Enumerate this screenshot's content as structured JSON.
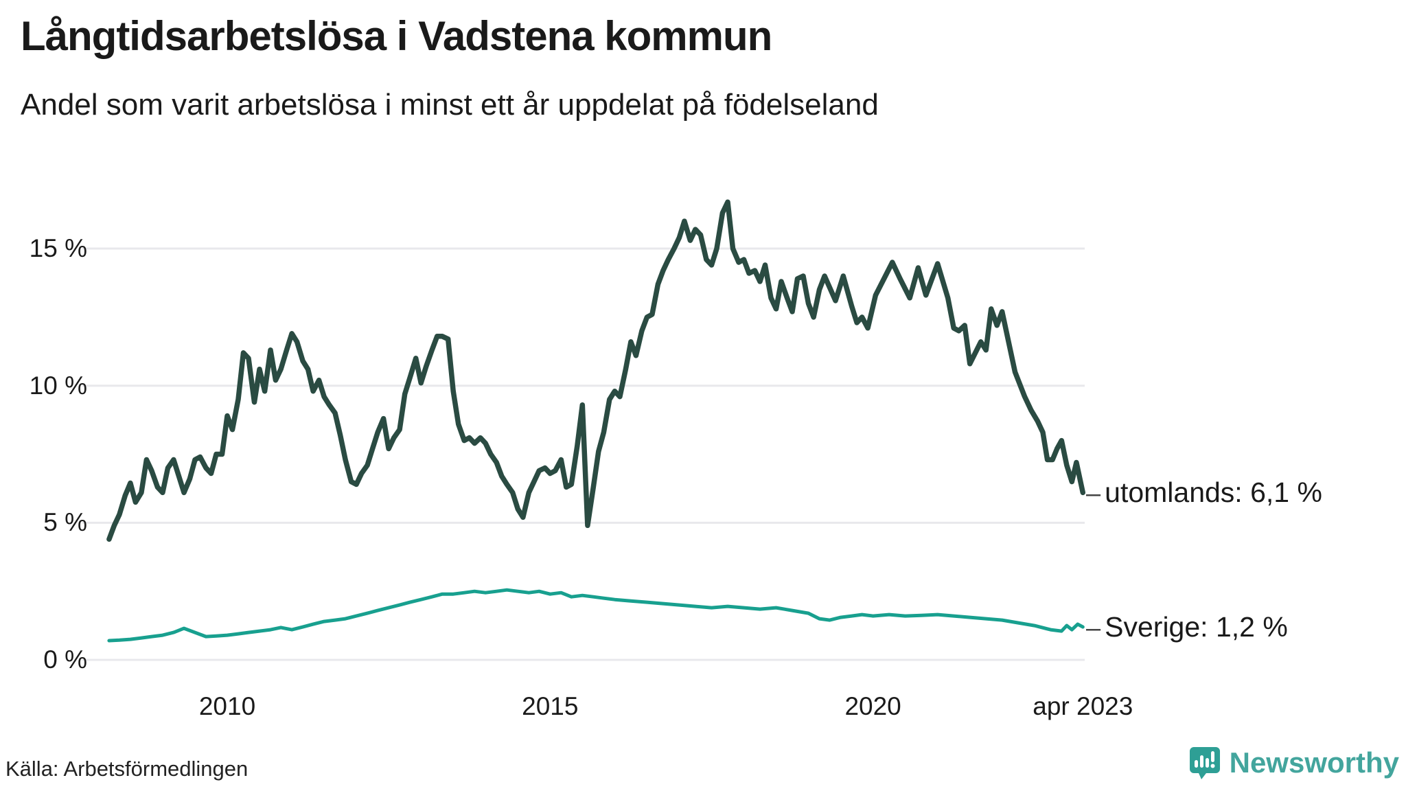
{
  "header": {
    "title": "Långtidsarbetslösa i Vadstena kommun",
    "subtitle": "Andel som varit arbetslösa i minst ett år uppdelat på födelseland"
  },
  "footer": {
    "source": "Källa: Arbetsförmedlingen",
    "brand": "Newsworthy"
  },
  "annotations": {
    "dash": "–",
    "utomlands_label": "utomlands: 6,1 %",
    "sverige_label": "Sverige: 1,2 %"
  },
  "colors": {
    "utomlands_line": "#2a4b42",
    "sverige_line": "#18a08f",
    "gridline": "#e8e8ec",
    "text": "#1a1a1a",
    "brand_teal": "#43a59d",
    "logo_bubble": "#2e9f95"
  },
  "chart_data": {
    "type": "line",
    "title": "Långtidsarbetslösa i Vadstena kommun",
    "subtitle": "Andel som varit arbetslösa i minst ett år uppdelat på födelseland",
    "unit": "%",
    "grid": true,
    "x_range": [
      2008.17,
      2023.25
    ],
    "y_range": [
      0,
      17
    ],
    "y_ticks": [
      {
        "value": 15,
        "label": "15 %"
      },
      {
        "value": 10,
        "label": "10 %"
      },
      {
        "value": 5,
        "label": "5 %"
      },
      {
        "value": 0,
        "label": "0 %"
      }
    ],
    "x_ticks": [
      {
        "year": 2010,
        "label": "2010"
      },
      {
        "year": 2015,
        "label": "2015"
      },
      {
        "year": 2020,
        "label": "2020"
      },
      {
        "year": 2023.25,
        "label": "apr 2023"
      }
    ],
    "series": [
      {
        "name": "utomlands",
        "end_value": "6,1 %",
        "color": "#2a4b42",
        "width": 7.5,
        "points": [
          [
            2008.17,
            4.4
          ],
          [
            2008.25,
            4.9
          ],
          [
            2008.33,
            5.3
          ],
          [
            2008.42,
            6.0
          ],
          [
            2008.5,
            6.45
          ],
          [
            2008.58,
            5.75
          ],
          [
            2008.67,
            6.1
          ],
          [
            2008.75,
            7.3
          ],
          [
            2008.83,
            6.9
          ],
          [
            2008.92,
            6.3
          ],
          [
            2009.0,
            6.1
          ],
          [
            2009.08,
            7.0
          ],
          [
            2009.17,
            7.3
          ],
          [
            2009.25,
            6.7
          ],
          [
            2009.33,
            6.1
          ],
          [
            2009.42,
            6.6
          ],
          [
            2009.5,
            7.3
          ],
          [
            2009.58,
            7.4
          ],
          [
            2009.67,
            7.0
          ],
          [
            2009.75,
            6.8
          ],
          [
            2009.83,
            7.5
          ],
          [
            2009.92,
            7.5
          ],
          [
            2010.0,
            8.9
          ],
          [
            2010.08,
            8.4
          ],
          [
            2010.17,
            9.5
          ],
          [
            2010.25,
            11.2
          ],
          [
            2010.33,
            11.0
          ],
          [
            2010.42,
            9.4
          ],
          [
            2010.5,
            10.6
          ],
          [
            2010.58,
            9.8
          ],
          [
            2010.67,
            11.3
          ],
          [
            2010.75,
            10.2
          ],
          [
            2010.83,
            10.6
          ],
          [
            2010.92,
            11.3
          ],
          [
            2011.0,
            11.9
          ],
          [
            2011.08,
            11.6
          ],
          [
            2011.17,
            10.9
          ],
          [
            2011.25,
            10.6
          ],
          [
            2011.33,
            9.8
          ],
          [
            2011.42,
            10.2
          ],
          [
            2011.5,
            9.6
          ],
          [
            2011.58,
            9.3
          ],
          [
            2011.67,
            9.0
          ],
          [
            2011.75,
            8.2
          ],
          [
            2011.83,
            7.3
          ],
          [
            2011.92,
            6.5
          ],
          [
            2012.0,
            6.4
          ],
          [
            2012.08,
            6.8
          ],
          [
            2012.17,
            7.1
          ],
          [
            2012.25,
            7.7
          ],
          [
            2012.33,
            8.3
          ],
          [
            2012.42,
            8.8
          ],
          [
            2012.5,
            7.7
          ],
          [
            2012.58,
            8.1
          ],
          [
            2012.67,
            8.4
          ],
          [
            2012.75,
            9.7
          ],
          [
            2012.83,
            10.3
          ],
          [
            2012.92,
            11.0
          ],
          [
            2013.0,
            10.1
          ],
          [
            2013.08,
            10.7
          ],
          [
            2013.17,
            11.3
          ],
          [
            2013.25,
            11.8
          ],
          [
            2013.33,
            11.8
          ],
          [
            2013.42,
            11.7
          ],
          [
            2013.5,
            9.8
          ],
          [
            2013.58,
            8.6
          ],
          [
            2013.67,
            8.0
          ],
          [
            2013.75,
            8.1
          ],
          [
            2013.83,
            7.9
          ],
          [
            2013.92,
            8.1
          ],
          [
            2014.0,
            7.9
          ],
          [
            2014.08,
            7.5
          ],
          [
            2014.17,
            7.2
          ],
          [
            2014.25,
            6.7
          ],
          [
            2014.33,
            6.4
          ],
          [
            2014.42,
            6.1
          ],
          [
            2014.5,
            5.5
          ],
          [
            2014.58,
            5.2
          ],
          [
            2014.67,
            6.1
          ],
          [
            2014.75,
            6.5
          ],
          [
            2014.83,
            6.9
          ],
          [
            2014.92,
            7.0
          ],
          [
            2015.0,
            6.8
          ],
          [
            2015.08,
            6.9
          ],
          [
            2015.17,
            7.3
          ],
          [
            2015.25,
            6.3
          ],
          [
            2015.33,
            6.4
          ],
          [
            2015.42,
            7.8
          ],
          [
            2015.5,
            9.3
          ],
          [
            2015.58,
            4.9
          ],
          [
            2015.67,
            6.3
          ],
          [
            2015.75,
            7.6
          ],
          [
            2015.83,
            8.3
          ],
          [
            2015.92,
            9.5
          ],
          [
            2016.0,
            9.8
          ],
          [
            2016.08,
            9.6
          ],
          [
            2016.17,
            10.6
          ],
          [
            2016.25,
            11.6
          ],
          [
            2016.33,
            11.1
          ],
          [
            2016.42,
            12.0
          ],
          [
            2016.5,
            12.5
          ],
          [
            2016.58,
            12.6
          ],
          [
            2016.67,
            13.7
          ],
          [
            2016.75,
            14.2
          ],
          [
            2016.83,
            14.6
          ],
          [
            2016.92,
            15.0
          ],
          [
            2017.0,
            15.4
          ],
          [
            2017.08,
            16.0
          ],
          [
            2017.17,
            15.3
          ],
          [
            2017.25,
            15.7
          ],
          [
            2017.33,
            15.5
          ],
          [
            2017.42,
            14.6
          ],
          [
            2017.5,
            14.4
          ],
          [
            2017.58,
            15.0
          ],
          [
            2017.67,
            16.3
          ],
          [
            2017.75,
            16.7
          ],
          [
            2017.83,
            15.0
          ],
          [
            2017.92,
            14.5
          ],
          [
            2018.0,
            14.6
          ],
          [
            2018.08,
            14.1
          ],
          [
            2018.17,
            14.2
          ],
          [
            2018.25,
            13.8
          ],
          [
            2018.33,
            14.4
          ],
          [
            2018.42,
            13.2
          ],
          [
            2018.5,
            12.8
          ],
          [
            2018.58,
            13.8
          ],
          [
            2018.67,
            13.2
          ],
          [
            2018.75,
            12.7
          ],
          [
            2018.83,
            13.9
          ],
          [
            2018.92,
            14.0
          ],
          [
            2019.0,
            13.0
          ],
          [
            2019.08,
            12.5
          ],
          [
            2019.17,
            13.5
          ],
          [
            2019.25,
            14.0
          ],
          [
            2019.42,
            13.1
          ],
          [
            2019.54,
            14.0
          ],
          [
            2019.67,
            12.9
          ],
          [
            2019.75,
            12.3
          ],
          [
            2019.83,
            12.5
          ],
          [
            2019.92,
            12.1
          ],
          [
            2020.04,
            13.3
          ],
          [
            2020.17,
            13.9
          ],
          [
            2020.3,
            14.5
          ],
          [
            2020.42,
            13.9
          ],
          [
            2020.57,
            13.2
          ],
          [
            2020.7,
            14.3
          ],
          [
            2020.82,
            13.3
          ],
          [
            2021.0,
            14.45
          ],
          [
            2021.16,
            13.2
          ],
          [
            2021.25,
            12.1
          ],
          [
            2021.33,
            12.0
          ],
          [
            2021.42,
            12.2
          ],
          [
            2021.5,
            10.8
          ],
          [
            2021.67,
            11.6
          ],
          [
            2021.75,
            11.3
          ],
          [
            2021.83,
            12.8
          ],
          [
            2021.92,
            12.2
          ],
          [
            2022.0,
            12.7
          ],
          [
            2022.1,
            11.6
          ],
          [
            2022.2,
            10.5
          ],
          [
            2022.35,
            9.6
          ],
          [
            2022.45,
            9.1
          ],
          [
            2022.55,
            8.7
          ],
          [
            2022.63,
            8.3
          ],
          [
            2022.7,
            7.3
          ],
          [
            2022.78,
            7.3
          ],
          [
            2022.85,
            7.7
          ],
          [
            2022.92,
            8.0
          ],
          [
            2023.0,
            7.1
          ],
          [
            2023.08,
            6.5
          ],
          [
            2023.15,
            7.2
          ],
          [
            2023.25,
            6.1
          ]
        ]
      },
      {
        "name": "Sverige",
        "end_value": "1,2 %",
        "color": "#18a08f",
        "width": 5,
        "points": [
          [
            2008.17,
            0.7
          ],
          [
            2008.33,
            0.72
          ],
          [
            2008.5,
            0.75
          ],
          [
            2008.67,
            0.8
          ],
          [
            2008.83,
            0.85
          ],
          [
            2009.0,
            0.9
          ],
          [
            2009.17,
            1.0
          ],
          [
            2009.33,
            1.15
          ],
          [
            2009.5,
            1.0
          ],
          [
            2009.67,
            0.85
          ],
          [
            2009.83,
            0.87
          ],
          [
            2010.0,
            0.9
          ],
          [
            2010.17,
            0.95
          ],
          [
            2010.33,
            1.0
          ],
          [
            2010.5,
            1.05
          ],
          [
            2010.67,
            1.1
          ],
          [
            2010.83,
            1.18
          ],
          [
            2011.0,
            1.1
          ],
          [
            2011.17,
            1.2
          ],
          [
            2011.33,
            1.3
          ],
          [
            2011.5,
            1.4
          ],
          [
            2011.67,
            1.45
          ],
          [
            2011.83,
            1.5
          ],
          [
            2012.0,
            1.6
          ],
          [
            2012.17,
            1.7
          ],
          [
            2012.33,
            1.8
          ],
          [
            2012.5,
            1.9
          ],
          [
            2012.67,
            2.0
          ],
          [
            2012.83,
            2.1
          ],
          [
            2013.0,
            2.2
          ],
          [
            2013.17,
            2.3
          ],
          [
            2013.33,
            2.4
          ],
          [
            2013.5,
            2.4
          ],
          [
            2013.67,
            2.45
          ],
          [
            2013.83,
            2.5
          ],
          [
            2014.0,
            2.45
          ],
          [
            2014.17,
            2.5
          ],
          [
            2014.33,
            2.55
          ],
          [
            2014.5,
            2.5
          ],
          [
            2014.67,
            2.45
          ],
          [
            2014.83,
            2.5
          ],
          [
            2015.0,
            2.4
          ],
          [
            2015.17,
            2.45
          ],
          [
            2015.33,
            2.3
          ],
          [
            2015.5,
            2.35
          ],
          [
            2015.67,
            2.3
          ],
          [
            2015.83,
            2.25
          ],
          [
            2016.0,
            2.2
          ],
          [
            2016.25,
            2.15
          ],
          [
            2016.5,
            2.1
          ],
          [
            2016.75,
            2.05
          ],
          [
            2017.0,
            2.0
          ],
          [
            2017.25,
            1.95
          ],
          [
            2017.5,
            1.9
          ],
          [
            2017.75,
            1.95
          ],
          [
            2018.0,
            1.9
          ],
          [
            2018.25,
            1.85
          ],
          [
            2018.5,
            1.9
          ],
          [
            2018.75,
            1.8
          ],
          [
            2019.0,
            1.7
          ],
          [
            2019.17,
            1.5
          ],
          [
            2019.33,
            1.45
          ],
          [
            2019.5,
            1.55
          ],
          [
            2019.67,
            1.6
          ],
          [
            2019.83,
            1.65
          ],
          [
            2020.0,
            1.6
          ],
          [
            2020.25,
            1.65
          ],
          [
            2020.5,
            1.6
          ],
          [
            2020.75,
            1.62
          ],
          [
            2021.0,
            1.65
          ],
          [
            2021.25,
            1.6
          ],
          [
            2021.5,
            1.55
          ],
          [
            2021.75,
            1.5
          ],
          [
            2022.0,
            1.45
          ],
          [
            2022.25,
            1.35
          ],
          [
            2022.5,
            1.25
          ],
          [
            2022.75,
            1.1
          ],
          [
            2022.92,
            1.05
          ],
          [
            2023.0,
            1.25
          ],
          [
            2023.08,
            1.1
          ],
          [
            2023.17,
            1.3
          ],
          [
            2023.25,
            1.2
          ]
        ]
      }
    ]
  }
}
